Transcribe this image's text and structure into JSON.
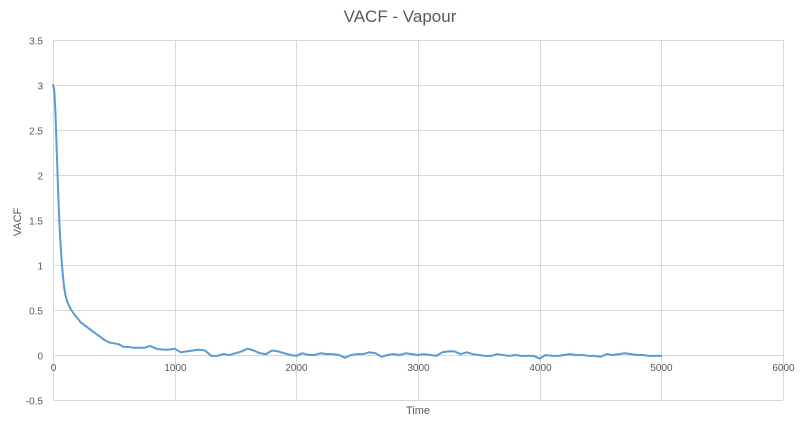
{
  "chart_data": {
    "type": "line",
    "title": "VACF - Vapour",
    "xlabel": "Time",
    "ylabel": "VACF",
    "xlim": [
      0,
      6000
    ],
    "ylim": [
      -0.5,
      3.5
    ],
    "x_ticks": [
      0,
      1000,
      2000,
      3000,
      4000,
      5000,
      6000
    ],
    "y_ticks": [
      -0.5,
      0,
      0.5,
      1,
      1.5,
      2,
      2.5,
      3,
      3.5
    ],
    "x_tick_labels": [
      "0",
      "1000",
      "2000",
      "3000",
      "4000",
      "5000",
      "6000"
    ],
    "y_tick_labels": [
      "-0.5",
      "0",
      "0.5",
      "1",
      "1.5",
      "2",
      "2.5",
      "3",
      "3.5"
    ],
    "grid": true,
    "legend": "none",
    "colors": {
      "series": "#5b9bd5",
      "grid": "#d9d9d9",
      "text": "#595959"
    },
    "series": [
      {
        "x": [
          0,
          10,
          20,
          30,
          40,
          50,
          60,
          70,
          80,
          90,
          100,
          115,
          130,
          150,
          175,
          200,
          230,
          260,
          300,
          340,
          380,
          420,
          460,
          500,
          540,
          580,
          620,
          660,
          700,
          750,
          800,
          850,
          900,
          950,
          1000,
          1050,
          1100,
          1150,
          1200,
          1250,
          1300,
          1350,
          1400,
          1450,
          1500,
          1550,
          1600,
          1650,
          1700,
          1750,
          1800,
          1850,
          1900,
          1950,
          2000,
          2050,
          2100,
          2150,
          2200,
          2250,
          2300,
          2350,
          2400,
          2450,
          2500,
          2550,
          2600,
          2650,
          2700,
          2750,
          2800,
          2850,
          2900,
          2950,
          3000,
          3050,
          3100,
          3150,
          3200,
          3250,
          3300,
          3350,
          3400,
          3450,
          3500,
          3550,
          3600,
          3650,
          3700,
          3750,
          3800,
          3850,
          3900,
          3950,
          4000,
          4050,
          4100,
          4150,
          4200,
          4250,
          4300,
          4350,
          4400,
          4450,
          4500,
          4550,
          4600,
          4650,
          4700,
          4750,
          4800,
          4850,
          4900,
          4950,
          5000
        ],
        "y": [
          3.0,
          2.95,
          2.7,
          2.3,
          1.9,
          1.55,
          1.28,
          1.07,
          0.9,
          0.77,
          0.68,
          0.6,
          0.55,
          0.5,
          0.45,
          0.41,
          0.36,
          0.33,
          0.29,
          0.25,
          0.21,
          0.17,
          0.14,
          0.13,
          0.12,
          0.09,
          0.09,
          0.08,
          0.08,
          0.08,
          0.1,
          0.07,
          0.06,
          0.06,
          0.07,
          0.03,
          0.04,
          0.05,
          0.06,
          0.05,
          -0.01,
          -0.01,
          0.01,
          0.0,
          0.02,
          0.04,
          0.07,
          0.05,
          0.02,
          0.01,
          0.05,
          0.04,
          0.02,
          0.0,
          -0.01,
          0.02,
          0.0,
          0.0,
          0.02,
          0.01,
          0.01,
          0.0,
          -0.03,
          0.0,
          0.01,
          0.01,
          0.03,
          0.02,
          -0.02,
          0.0,
          0.01,
          0.0,
          0.02,
          0.01,
          0.0,
          0.01,
          0.0,
          -0.01,
          0.03,
          0.04,
          0.04,
          0.01,
          0.03,
          0.01,
          0.0,
          -0.01,
          -0.01,
          0.01,
          0.0,
          -0.01,
          0.0,
          -0.01,
          -0.01,
          -0.01,
          -0.04,
          0.0,
          -0.01,
          -0.01,
          0.0,
          0.01,
          0.0,
          0.0,
          -0.01,
          -0.01,
          -0.02,
          0.01,
          0.0,
          0.01,
          0.02,
          0.01,
          0.0,
          0.0,
          -0.01,
          -0.01,
          -0.01
        ]
      }
    ]
  }
}
